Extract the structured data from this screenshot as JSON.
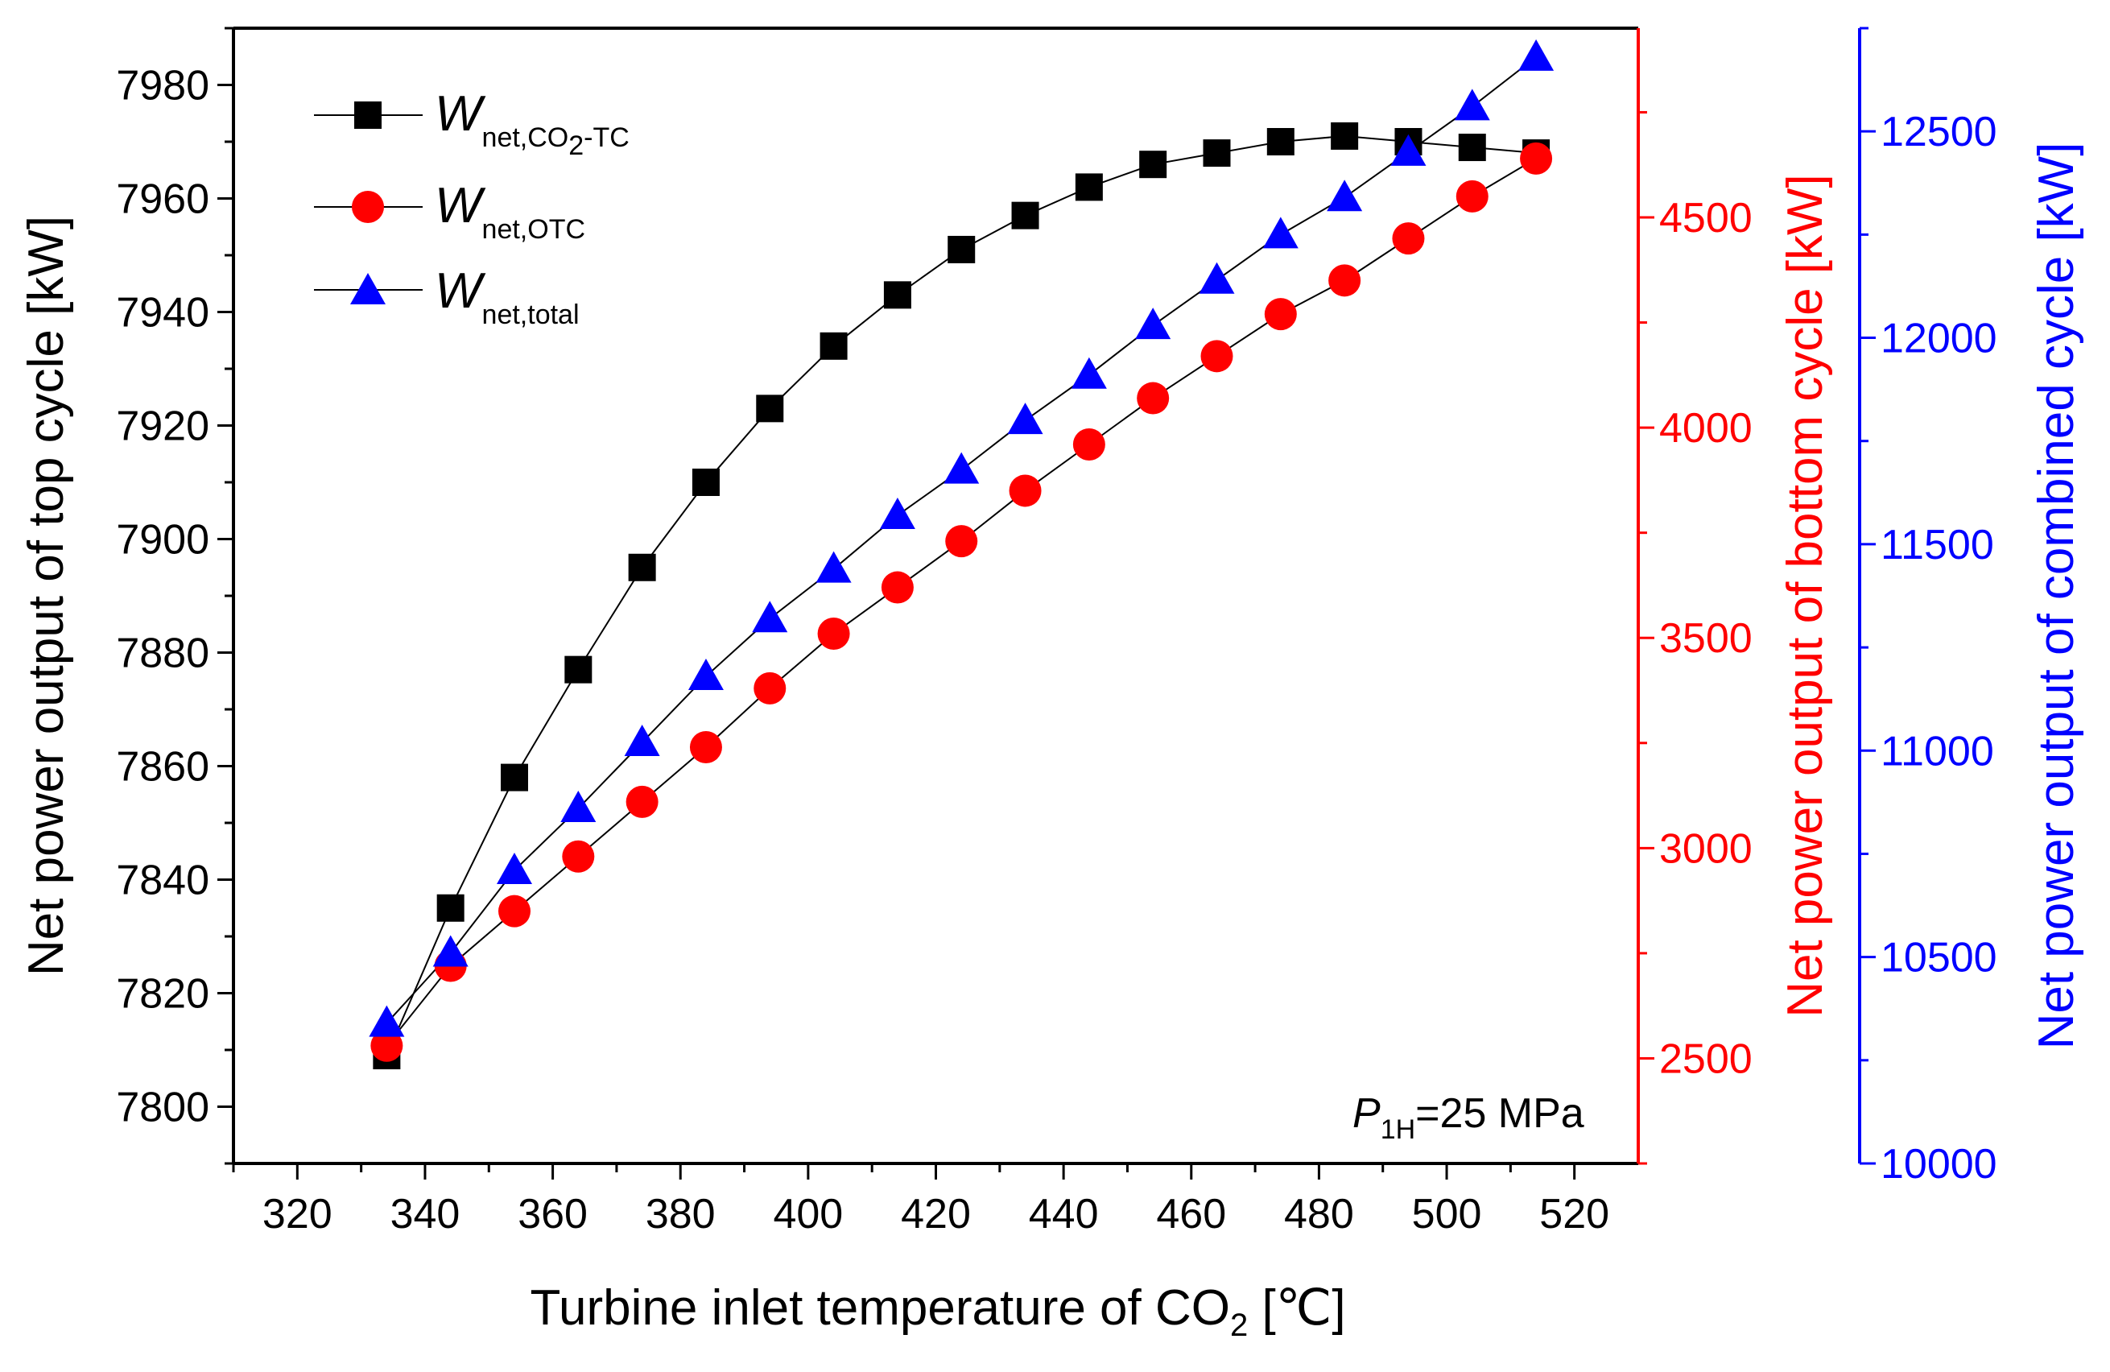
{
  "chart_data": {
    "type": "line",
    "xlabel_main": "Turbine inlet temperature of CO",
    "xlabel_sub": "2",
    "xlabel_unit": " [℃]",
    "x": [
      334,
      344,
      354,
      364,
      374,
      384,
      394,
      404,
      414,
      424,
      434,
      444,
      454,
      464,
      474,
      484,
      494,
      504,
      514
    ],
    "x_axis": {
      "range": [
        310,
        530
      ],
      "ticks": [
        320,
        340,
        360,
        380,
        400,
        420,
        440,
        460,
        480,
        500,
        520
      ]
    },
    "axes": [
      {
        "id": "left",
        "label": "Net power output of top cycle [kW]",
        "color": "#000000",
        "range": [
          7790,
          7990
        ],
        "ticks": [
          7800,
          7820,
          7840,
          7860,
          7880,
          7900,
          7920,
          7940,
          7960,
          7980
        ]
      },
      {
        "id": "right1",
        "label": "Net power output of bottom cycle [kW]",
        "color": "#ff0000",
        "range": [
          2250,
          4950
        ],
        "ticks": [
          2500,
          3000,
          3500,
          4000,
          4500
        ]
      },
      {
        "id": "right2",
        "label": "Net power output of combined cycle [kW]",
        "color": "#0000ff",
        "range": [
          10000,
          12750
        ],
        "ticks": [
          10000,
          10500,
          11000,
          11500,
          12000,
          12500
        ]
      }
    ],
    "series": [
      {
        "name": "W net,CO2-TC",
        "axis": "left",
        "marker": "square",
        "color": "#000000",
        "values": [
          7809,
          7835,
          7858,
          7877,
          7895,
          7910,
          7923,
          7934,
          7943,
          7951,
          7957,
          7962,
          7966,
          7968,
          7970,
          7971,
          7970,
          7969,
          7968
        ]
      },
      {
        "name": "W net,OTC",
        "axis": "right1",
        "marker": "circle",
        "color": "#ff0000",
        "values": [
          2530,
          2720,
          2850,
          2980,
          3110,
          3240,
          3380,
          3510,
          3620,
          3730,
          3850,
          3960,
          4070,
          4170,
          4270,
          4350,
          4450,
          4550,
          4640
        ]
      },
      {
        "name": "W net,total",
        "axis": "right2",
        "marker": "triangle",
        "color": "#0000ff",
        "values": [
          10340,
          10510,
          10710,
          10860,
          11020,
          11180,
          11320,
          11440,
          11570,
          11680,
          11800,
          11910,
          12030,
          12140,
          12250,
          12340,
          12450,
          12560,
          12680
        ]
      }
    ],
    "legend": {
      "position": "top-left",
      "entries": [
        {
          "main": "W",
          "sub": "net,CO",
          "sub2": "2",
          "tail": "-TC"
        },
        {
          "main": "W",
          "sub": "net,OTC"
        },
        {
          "main": "W",
          "sub": "net,total"
        }
      ]
    },
    "annotation": {
      "italic": "P",
      "sub": "1H",
      "text": "=25 MPa",
      "position": "bottom-right"
    }
  }
}
